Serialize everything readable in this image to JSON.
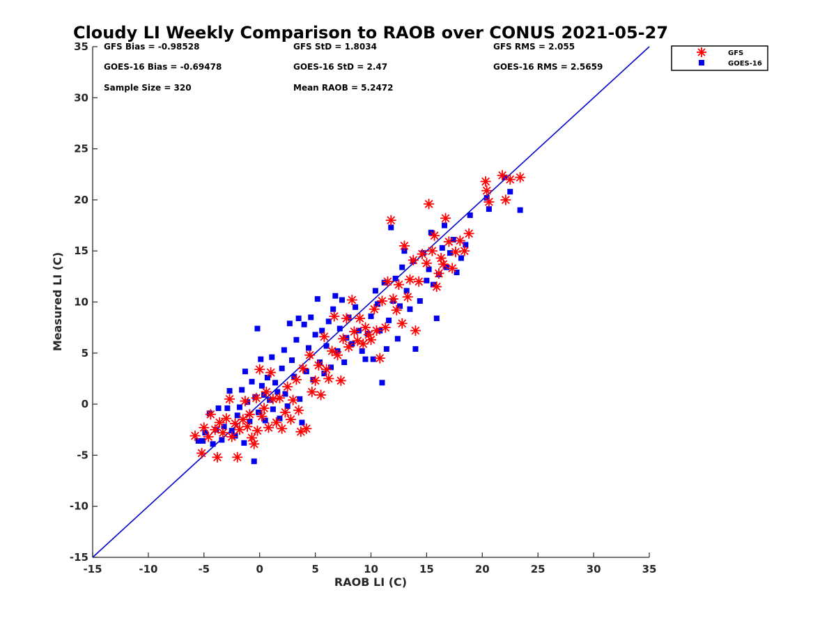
{
  "chart_data": {
    "type": "scatter",
    "title": "Cloudy LI Weekly Comparison to RAOB over CONUS 2021-05-27",
    "xlabel": "RAOB LI (C)",
    "ylabel": "Measured LI (C)",
    "xlim": [
      -15,
      35
    ],
    "ylim": [
      -15,
      35
    ],
    "xticks": [
      -15,
      -10,
      -5,
      0,
      5,
      10,
      15,
      20,
      25,
      30,
      35
    ],
    "yticks": [
      -15,
      -10,
      -5,
      0,
      5,
      10,
      15,
      20,
      25,
      30,
      35
    ],
    "grid": false,
    "legend_position": "top-right outside",
    "reference_line": {
      "x": [
        -15,
        35
      ],
      "y": [
        -15,
        35
      ],
      "color": "#0000cc"
    },
    "stats": [
      "GFS Bias = -0.98528",
      "GFS StD = 1.8034",
      "GFS RMS = 2.055",
      "GOES-16 Bias = -0.69478",
      "GOES-16 StD = 2.47",
      "GOES-16 RMS = 2.5659",
      "Sample Size = 320",
      "Mean RAOB = 5.2472"
    ],
    "series": [
      {
        "name": "GFS",
        "marker": "asterisk",
        "color": "#ff0000",
        "points": [
          [
            -5.8,
            -3.1
          ],
          [
            -5.2,
            -4.8
          ],
          [
            -5,
            -2.3
          ],
          [
            -4.6,
            -3.2
          ],
          [
            -4.4,
            -1
          ],
          [
            -4,
            -2.5
          ],
          [
            -3.8,
            -5.2
          ],
          [
            -3.6,
            -1.8
          ],
          [
            -3.3,
            -2.8
          ],
          [
            -3,
            -1.4
          ],
          [
            -2.7,
            0.5
          ],
          [
            -2.5,
            -3.2
          ],
          [
            -2.2,
            -1.9
          ],
          [
            -2,
            -5.2
          ],
          [
            -1.8,
            -2.5
          ],
          [
            -1.5,
            -1.5
          ],
          [
            -1.3,
            0.3
          ],
          [
            -1.1,
            -2.2
          ],
          [
            -0.9,
            -1
          ],
          [
            -0.7,
            -3.3
          ],
          [
            -0.5,
            -3.9
          ],
          [
            -0.3,
            0.6
          ],
          [
            -0.2,
            -2.6
          ],
          [
            0,
            3.4
          ],
          [
            0.2,
            -1.2
          ],
          [
            0.4,
            -0.4
          ],
          [
            0.6,
            1.2
          ],
          [
            0.8,
            -2.3
          ],
          [
            1,
            3.1
          ],
          [
            1.2,
            0.5
          ],
          [
            1.5,
            -1.8
          ],
          [
            1.8,
            0.6
          ],
          [
            2,
            -2.4
          ],
          [
            2.3,
            -0.8
          ],
          [
            2.5,
            1.7
          ],
          [
            2.8,
            -1.5
          ],
          [
            3,
            0.4
          ],
          [
            3.3,
            2.4
          ],
          [
            3.5,
            -0.6
          ],
          [
            3.7,
            -2.7
          ],
          [
            3.9,
            3.5
          ],
          [
            4.2,
            -2.4
          ],
          [
            4.5,
            4.8
          ],
          [
            4.7,
            1.2
          ],
          [
            5,
            2.3
          ],
          [
            5.3,
            3.8
          ],
          [
            5.5,
            0.9
          ],
          [
            5.8,
            6.6
          ],
          [
            6,
            3.4
          ],
          [
            6.2,
            2.5
          ],
          [
            6.5,
            5.2
          ],
          [
            6.7,
            8.6
          ],
          [
            7,
            4.8
          ],
          [
            7.3,
            2.3
          ],
          [
            7.5,
            6.4
          ],
          [
            7.8,
            8.4
          ],
          [
            8,
            5.6
          ],
          [
            8.3,
            10.2
          ],
          [
            8.5,
            7.1
          ],
          [
            8.8,
            6.2
          ],
          [
            9,
            8.4
          ],
          [
            9.3,
            5.9
          ],
          [
            9.5,
            7.5
          ],
          [
            9.8,
            6.8
          ],
          [
            10,
            6.3
          ],
          [
            10.3,
            9.3
          ],
          [
            10.5,
            7.2
          ],
          [
            10.8,
            4.5
          ],
          [
            11,
            10.1
          ],
          [
            11.3,
            7.5
          ],
          [
            11.5,
            12
          ],
          [
            11.8,
            18
          ],
          [
            12,
            10.3
          ],
          [
            12.3,
            9.2
          ],
          [
            12.5,
            11.7
          ],
          [
            12.8,
            7.9
          ],
          [
            13,
            15.5
          ],
          [
            13.3,
            10.5
          ],
          [
            13.5,
            12.2
          ],
          [
            13.8,
            14.1
          ],
          [
            14,
            7.2
          ],
          [
            14.3,
            12
          ],
          [
            14.6,
            14.7
          ],
          [
            15,
            13.8
          ],
          [
            15.2,
            19.6
          ],
          [
            15.5,
            15
          ],
          [
            15.7,
            16.5
          ],
          [
            15.9,
            11.5
          ],
          [
            16.1,
            12.8
          ],
          [
            16.3,
            14.3
          ],
          [
            16.5,
            13.7
          ],
          [
            16.7,
            18.2
          ],
          [
            17,
            15.9
          ],
          [
            17.3,
            13.3
          ],
          [
            17.6,
            14.9
          ],
          [
            18,
            16
          ],
          [
            18.4,
            15
          ],
          [
            18.8,
            16.7
          ],
          [
            20.3,
            21.8
          ],
          [
            20.4,
            20.9
          ],
          [
            20.6,
            19.8
          ],
          [
            21.8,
            22.4
          ],
          [
            22.1,
            20
          ],
          [
            22.5,
            22
          ],
          [
            23.4,
            22.2
          ]
        ]
      },
      {
        "name": "GOES-16",
        "marker": "square",
        "color": "#0000ee",
        "points": [
          [
            -5.5,
            -3.6
          ],
          [
            -5.1,
            -3.6
          ],
          [
            -4.9,
            -2.8
          ],
          [
            -4.5,
            -0.9
          ],
          [
            -4.2,
            -3.9
          ],
          [
            -3.9,
            -2.5
          ],
          [
            -3.7,
            -0.4
          ],
          [
            -3.4,
            -3.5
          ],
          [
            -3.2,
            -2.2
          ],
          [
            -2.9,
            -0.4
          ],
          [
            -2.7,
            1.3
          ],
          [
            -2.5,
            -2.6
          ],
          [
            -2.2,
            -3.1
          ],
          [
            -2,
            -1.1
          ],
          [
            -1.8,
            -0.3
          ],
          [
            -1.6,
            1.4
          ],
          [
            -1.4,
            -3.8
          ],
          [
            -1.3,
            3.2
          ],
          [
            -1.1,
            0.2
          ],
          [
            -0.9,
            -1.7
          ],
          [
            -0.7,
            2.2
          ],
          [
            -0.5,
            -5.6
          ],
          [
            -0.4,
            0.7
          ],
          [
            -0.2,
            7.4
          ],
          [
            -0.1,
            -0.8
          ],
          [
            0.1,
            4.4
          ],
          [
            0.2,
            1.8
          ],
          [
            0.4,
            0.9
          ],
          [
            0.5,
            -1.6
          ],
          [
            0.7,
            2.6
          ],
          [
            0.9,
            0.4
          ],
          [
            1.1,
            4.6
          ],
          [
            1.2,
            -0.5
          ],
          [
            1.4,
            2.1
          ],
          [
            1.6,
            1.2
          ],
          [
            1.8,
            -1.4
          ],
          [
            2,
            3.5
          ],
          [
            2.2,
            5.3
          ],
          [
            2.3,
            1
          ],
          [
            2.5,
            -0.2
          ],
          [
            2.7,
            7.9
          ],
          [
            2.9,
            4.3
          ],
          [
            3.1,
            2.7
          ],
          [
            3.3,
            6.3
          ],
          [
            3.5,
            8.4
          ],
          [
            3.6,
            0.5
          ],
          [
            3.8,
            -1.8
          ],
          [
            4,
            7.8
          ],
          [
            4.2,
            3.2
          ],
          [
            4.4,
            5.5
          ],
          [
            4.6,
            8.5
          ],
          [
            4.8,
            2.4
          ],
          [
            5,
            6.8
          ],
          [
            5.2,
            10.3
          ],
          [
            5.4,
            4.1
          ],
          [
            5.6,
            7.2
          ],
          [
            5.8,
            3
          ],
          [
            6,
            5.7
          ],
          [
            6.2,
            8.1
          ],
          [
            6.4,
            3.6
          ],
          [
            6.6,
            9.3
          ],
          [
            6.8,
            10.6
          ],
          [
            7,
            5.2
          ],
          [
            7.2,
            7.4
          ],
          [
            7.4,
            10.2
          ],
          [
            7.6,
            4.1
          ],
          [
            7.8,
            6.5
          ],
          [
            8,
            8.5
          ],
          [
            8.3,
            5.9
          ],
          [
            8.6,
            9.5
          ],
          [
            8.9,
            7.2
          ],
          [
            9.2,
            5.2
          ],
          [
            9.5,
            4.4
          ],
          [
            9.7,
            6.9
          ],
          [
            10,
            8.6
          ],
          [
            10.2,
            4.4
          ],
          [
            10.4,
            11.1
          ],
          [
            10.6,
            9.8
          ],
          [
            10.8,
            7.2
          ],
          [
            11,
            2.1
          ],
          [
            11.2,
            11.9
          ],
          [
            11.4,
            5.4
          ],
          [
            11.6,
            8.2
          ],
          [
            11.8,
            17.3
          ],
          [
            12,
            10.1
          ],
          [
            12.2,
            12.3
          ],
          [
            12.4,
            6.4
          ],
          [
            12.6,
            9.6
          ],
          [
            12.8,
            13.4
          ],
          [
            13,
            15
          ],
          [
            13.2,
            11.1
          ],
          [
            13.5,
            9.3
          ],
          [
            13.8,
            14
          ],
          [
            14,
            5.4
          ],
          [
            14.4,
            10.1
          ],
          [
            14.7,
            14.8
          ],
          [
            15,
            12.1
          ],
          [
            15.2,
            13.2
          ],
          [
            15.4,
            16.8
          ],
          [
            15.6,
            11.7
          ],
          [
            15.9,
            8.4
          ],
          [
            16.1,
            12.7
          ],
          [
            16.4,
            15.3
          ],
          [
            16.6,
            17.5
          ],
          [
            16.8,
            13.4
          ],
          [
            17.1,
            14.8
          ],
          [
            17.4,
            16.1
          ],
          [
            17.7,
            12.9
          ],
          [
            18.1,
            14.3
          ],
          [
            18.5,
            15.6
          ],
          [
            18.9,
            18.5
          ],
          [
            20.4,
            20.2
          ],
          [
            20.6,
            19.1
          ],
          [
            22.0,
            22.2
          ],
          [
            22.5,
            20.8
          ],
          [
            23.4,
            19
          ]
        ]
      }
    ]
  }
}
